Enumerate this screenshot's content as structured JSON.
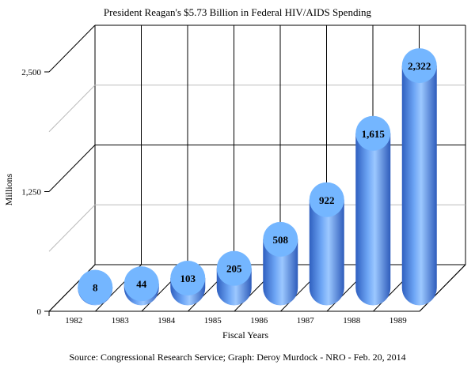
{
  "chart_data": {
    "type": "bar",
    "title": "President Reagan's $5.73 Billion in Federal HIV/AIDS Spending",
    "xlabel": "Fiscal Years",
    "ylabel": "Millions",
    "categories": [
      "1982",
      "1983",
      "1984",
      "1985",
      "1986",
      "1987",
      "1988",
      "1989"
    ],
    "values": [
      8,
      44,
      103,
      205,
      508,
      922,
      1615,
      2322
    ],
    "value_labels": [
      "8",
      "44",
      "103",
      "205",
      "508",
      "922",
      "1,615",
      "2,322"
    ],
    "ylim": [
      0,
      2500
    ],
    "yticks": [
      0,
      1250,
      2500
    ],
    "ytick_labels": [
      "0",
      "1,250",
      "2,500"
    ],
    "grid": true,
    "style": "3d-cylinder",
    "source": "Source: Congressional Research Service; Graph: Deroy Murdock - NRO - Feb. 20, 2014"
  },
  "colors": {
    "bar_dark": "#2f5fbf",
    "bar_mid": "#4f86e0",
    "bar_light": "#9cc8ff",
    "bar_top": "#74b6ff"
  }
}
